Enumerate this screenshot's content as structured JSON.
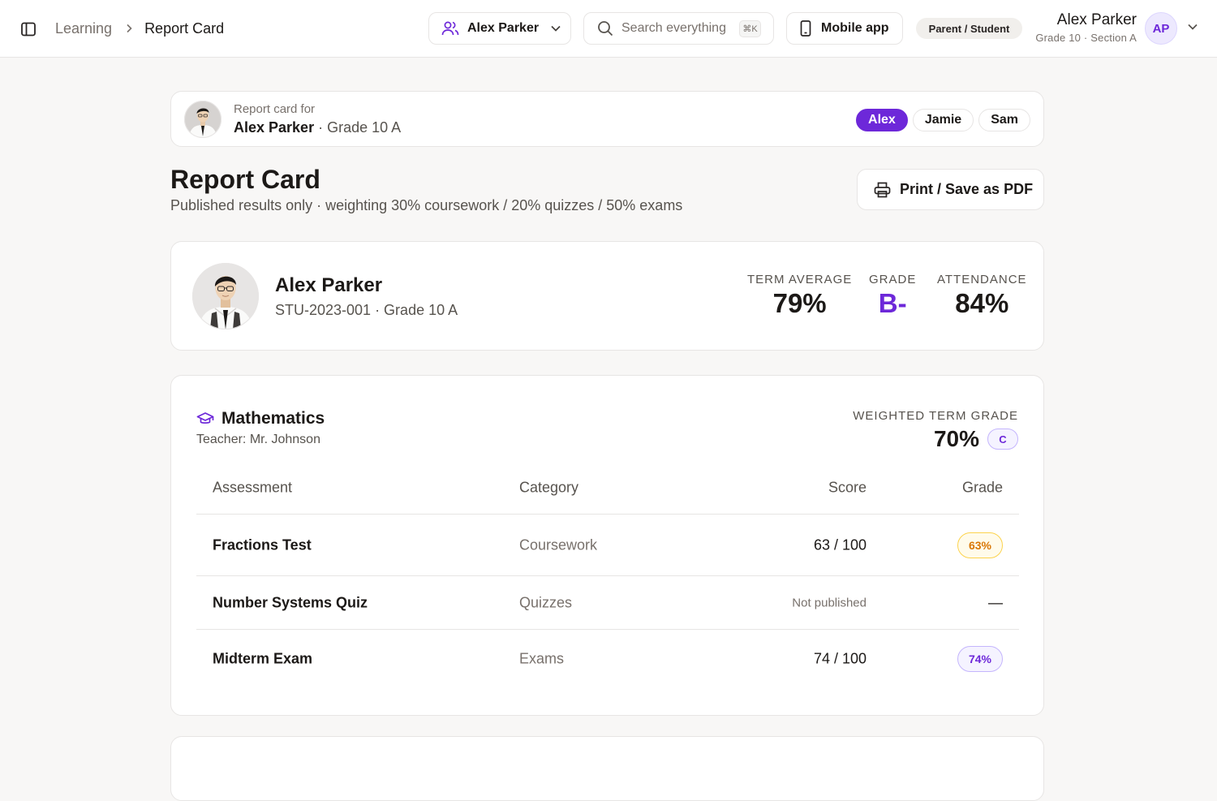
{
  "header": {
    "breadcrumb": {
      "root": "Learning",
      "current": "Report Card"
    },
    "student_selector": {
      "label": "Alex Parker"
    },
    "search": {
      "placeholder": "Search everything",
      "shortcut": "⌘K"
    },
    "mobile_app_label": "Mobile app",
    "role_badge": "Parent / Student",
    "user": {
      "name": "Alex Parker",
      "subtitle": "Grade 10 · Section A",
      "initials": "AP"
    }
  },
  "report_for": {
    "label": "Report card for",
    "name": "Alex Parker",
    "grade": "· Grade 10 A",
    "children": [
      {
        "label": "Alex",
        "active": true
      },
      {
        "label": "Jamie",
        "active": false
      },
      {
        "label": "Sam",
        "active": false
      }
    ]
  },
  "page": {
    "title": "Report Card",
    "subtitle": "Published results only · weighting 30% coursework / 20% quizzes / 50% exams",
    "print_label": "Print / Save as PDF"
  },
  "profile": {
    "name": "Alex Parker",
    "subtitle": "STU-2023-001 · Grade 10 A",
    "stats": {
      "term_average_label": "TERM AVERAGE",
      "term_average": "79%",
      "grade_label": "GRADE",
      "grade": "B-",
      "attendance_label": "ATTENDANCE",
      "attendance": "84%"
    }
  },
  "subject": {
    "name": "Mathematics",
    "teacher": "Teacher: Mr. Johnson",
    "weighted_label": "WEIGHTED TERM GRADE",
    "weighted_value": "70%",
    "weighted_letter": "C",
    "columns": {
      "assessment": "Assessment",
      "category": "Category",
      "score": "Score",
      "grade": "Grade"
    },
    "rows": [
      {
        "assessment": "Fractions Test",
        "category": "Coursework",
        "score": "63 / 100",
        "grade": "63%"
      },
      {
        "assessment": "Number Systems Quiz",
        "category": "Quizzes",
        "score": "Not published",
        "grade": "—"
      },
      {
        "assessment": "Midterm Exam",
        "category": "Exams",
        "score": "74 / 100",
        "grade": "74%"
      }
    ]
  },
  "colors": {
    "accent": "#6d28d9",
    "background": "#f8f7f6",
    "amber": "#d97706"
  }
}
